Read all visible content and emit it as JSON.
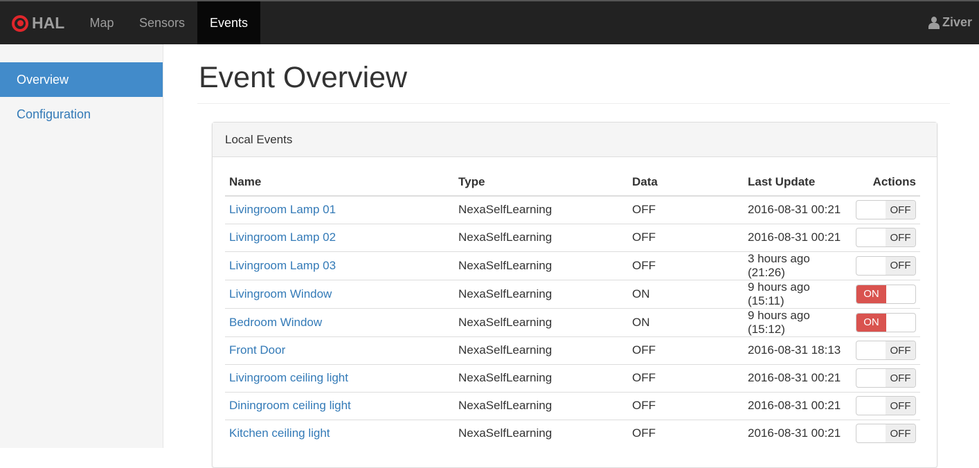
{
  "navbar": {
    "brand": "HAL",
    "items": [
      {
        "label": "Map"
      },
      {
        "label": "Sensors"
      },
      {
        "label": "Events",
        "active": true
      }
    ],
    "user": "Ziver"
  },
  "sidebar": {
    "items": [
      {
        "label": "Overview",
        "active": true
      },
      {
        "label": "Configuration"
      }
    ]
  },
  "page": {
    "title": "Event Overview"
  },
  "panel": {
    "title": "Local Events",
    "columns": [
      "Name",
      "Type",
      "Data",
      "Last Update",
      "Actions"
    ],
    "rows": [
      {
        "name": "Livingroom Lamp 01",
        "type": "NexaSelfLearning",
        "data": "OFF",
        "updated": "2016-08-31 00:21",
        "toggle": "OFF"
      },
      {
        "name": "Livingroom Lamp 02",
        "type": "NexaSelfLearning",
        "data": "OFF",
        "updated": "2016-08-31 00:21",
        "toggle": "OFF"
      },
      {
        "name": "Livingroom Lamp 03",
        "type": "NexaSelfLearning",
        "data": "OFF",
        "updated": "3 hours ago (21:26)",
        "toggle": "OFF"
      },
      {
        "name": "Livingroom Window",
        "type": "NexaSelfLearning",
        "data": "ON",
        "updated": "9 hours ago (15:11)",
        "toggle": "ON"
      },
      {
        "name": "Bedroom Window",
        "type": "NexaSelfLearning",
        "data": "ON",
        "updated": "9 hours ago (15:12)",
        "toggle": "ON"
      },
      {
        "name": "Front Door",
        "type": "NexaSelfLearning",
        "data": "OFF",
        "updated": "2016-08-31 18:13",
        "toggle": "OFF"
      },
      {
        "name": "Livingroom ceiling light",
        "type": "NexaSelfLearning",
        "data": "OFF",
        "updated": "2016-08-31 00:21",
        "toggle": "OFF"
      },
      {
        "name": "Diningroom ceiling light",
        "type": "NexaSelfLearning",
        "data": "OFF",
        "updated": "2016-08-31 00:21",
        "toggle": "OFF"
      },
      {
        "name": "Kitchen ceiling light",
        "type": "NexaSelfLearning",
        "data": "OFF",
        "updated": "2016-08-31 00:21",
        "toggle": "OFF"
      }
    ]
  },
  "colors": {
    "navbar": "#222222",
    "active_sidebar": "#428bca",
    "link": "#337ab7",
    "toggle_on": "#d9534f",
    "logo": "#e0262b"
  }
}
